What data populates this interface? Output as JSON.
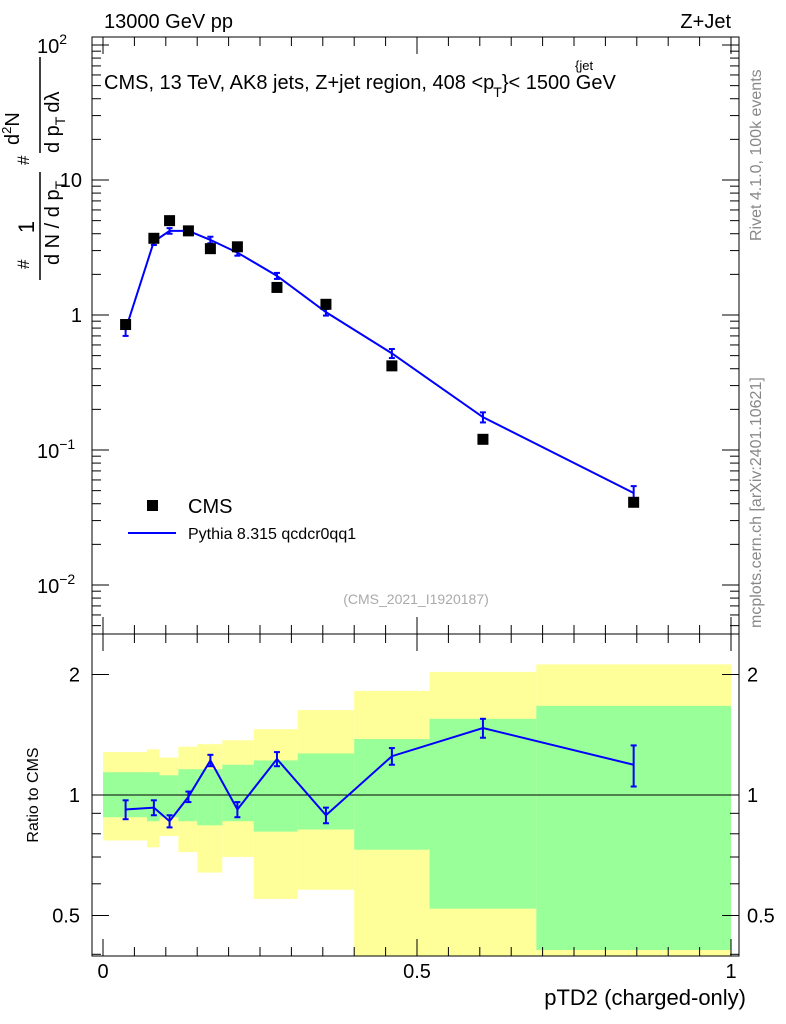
{
  "header": {
    "left_label": "13000 GeV pp",
    "right_label": "Z+Jet",
    "plot_title_main": "CMS, 13 TeV, AK8 jets, Z+jet region, 408 <p",
    "plot_title_sup": "{jet",
    "plot_title_sub": "T",
    "plot_title_end": "}< 1500 GeV"
  },
  "side_labels": {
    "rivet": "Rivet 4.1.0,  100k events",
    "mcplots": "mcplots.cern.ch [arXiv:2401.10621]"
  },
  "analysis_tag": "(CMS_2021_I1920187)",
  "colors": {
    "data": "#000000",
    "mc": "#0000ff",
    "band_inner": "#99ff99",
    "band_outer": "#ffff99"
  },
  "chart_data": [
    {
      "type": "scatter",
      "panel": "main",
      "title": "CMS, 13 TeV, AK8 jets, Z+jet region, 408 < pT{jet} < 1500 GeV",
      "ylabel": "1/dN/dpT · d²N/dpT dλ",
      "ylabel_parts": [
        "#",
        "1",
        "d N / d p",
        "T",
        "#",
        "d",
        "2",
        "N",
        "d p",
        "T",
        "dλ"
      ],
      "yscale": "log",
      "ylim": [
        0.005,
        150
      ],
      "xlim": [
        -0.02,
        1.0
      ],
      "y_ticks": [
        {
          "value": 0.01,
          "base": "10",
          "exp": "−2"
        },
        {
          "value": 0.1,
          "base": "10",
          "exp": "−1"
        },
        {
          "value": 1,
          "label": "1"
        },
        {
          "value": 10,
          "label": "10"
        },
        {
          "value": 100,
          "base": "10",
          "exp": "2"
        }
      ],
      "legend": [
        {
          "label": "CMS",
          "marker": "square"
        },
        {
          "label": "Pythia 8.315 qcdcr0qq1",
          "marker": "line"
        }
      ],
      "legend_position": "lower-left",
      "series": [
        {
          "name": "CMS",
          "x": [
            0.036,
            0.081,
            0.106,
            0.136,
            0.171,
            0.214,
            0.277,
            0.355,
            0.46,
            0.605,
            0.845
          ],
          "y": [
            0.85,
            3.7,
            5.0,
            4.2,
            3.1,
            3.2,
            1.6,
            1.2,
            0.42,
            0.12,
            0.041
          ]
        },
        {
          "name": "Pythia 8.315 qcdcr0qq1",
          "x": [
            0.036,
            0.081,
            0.106,
            0.136,
            0.171,
            0.214,
            0.277,
            0.355,
            0.46,
            0.605,
            0.845
          ],
          "y": [
            0.78,
            3.5,
            4.2,
            4.2,
            3.6,
            2.9,
            1.95,
            1.05,
            0.52,
            0.175,
            0.048
          ],
          "yerr": [
            0.08,
            0.2,
            0.2,
            0.2,
            0.2,
            0.15,
            0.1,
            0.06,
            0.04,
            0.015,
            0.006
          ]
        }
      ]
    },
    {
      "type": "line",
      "panel": "ratio",
      "ylabel": "Ratio to CMS",
      "xlabel": "pTD2 (charged-only)",
      "xlim": [
        -0.02,
        1.0
      ],
      "ylim": [
        0.35,
        2.3
      ],
      "yscale": "log",
      "y_ticks": [
        0.5,
        1,
        2
      ],
      "y_tick_labels": [
        "0.5",
        "1",
        "2"
      ],
      "x_ticks": [
        0,
        0.5,
        1
      ],
      "x_tick_labels": [
        "0",
        "0.5",
        "1"
      ],
      "bins": [
        {
          "lo": 0.0,
          "hi": 0.07,
          "inner": [
            0.88,
            1.14
          ],
          "outer": [
            0.77,
            1.28
          ]
        },
        {
          "lo": 0.07,
          "hi": 0.09,
          "inner": [
            0.86,
            1.14
          ],
          "outer": [
            0.74,
            1.3
          ]
        },
        {
          "lo": 0.09,
          "hi": 0.12,
          "inner": [
            0.88,
            1.12
          ],
          "outer": [
            0.79,
            1.24
          ]
        },
        {
          "lo": 0.12,
          "hi": 0.15,
          "inner": [
            0.86,
            1.16
          ],
          "outer": [
            0.72,
            1.32
          ]
        },
        {
          "lo": 0.15,
          "hi": 0.19,
          "inner": [
            0.84,
            1.16
          ],
          "outer": [
            0.64,
            1.34
          ]
        },
        {
          "lo": 0.19,
          "hi": 0.24,
          "inner": [
            0.86,
            1.19
          ],
          "outer": [
            0.7,
            1.37
          ]
        },
        {
          "lo": 0.24,
          "hi": 0.31,
          "inner": [
            0.81,
            1.22
          ],
          "outer": [
            0.55,
            1.46
          ]
        },
        {
          "lo": 0.31,
          "hi": 0.4,
          "inner": [
            0.82,
            1.27
          ],
          "outer": [
            0.58,
            1.63
          ]
        },
        {
          "lo": 0.4,
          "hi": 0.52,
          "inner": [
            0.73,
            1.38
          ],
          "outer": [
            0.3,
            1.82
          ]
        },
        {
          "lo": 0.52,
          "hi": 0.69,
          "inner": [
            0.52,
            1.55
          ],
          "outer": [
            0.3,
            2.03
          ]
        },
        {
          "lo": 0.69,
          "hi": 1.0,
          "inner": [
            0.41,
            1.67
          ],
          "outer": [
            0.3,
            2.12
          ]
        }
      ],
      "series": [
        {
          "name": "Pythia 8.315 qcdcr0qq1 / CMS",
          "x": [
            0.036,
            0.081,
            0.106,
            0.136,
            0.171,
            0.214,
            0.277,
            0.355,
            0.46,
            0.605,
            0.845
          ],
          "y": [
            0.92,
            0.93,
            0.86,
            0.99,
            1.22,
            0.92,
            1.23,
            0.89,
            1.25,
            1.47,
            1.19
          ],
          "yerr": [
            0.05,
            0.04,
            0.03,
            0.03,
            0.04,
            0.04,
            0.05,
            0.04,
            0.06,
            0.08,
            0.14
          ]
        }
      ]
    }
  ]
}
